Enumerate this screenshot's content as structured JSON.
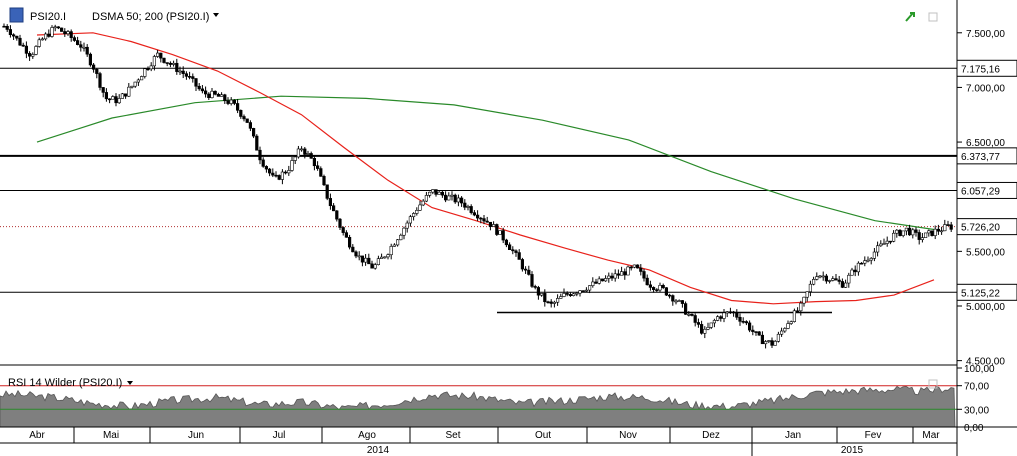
{
  "header": {
    "symbol_label": "PSI20.I",
    "indicator_label": "DSMA 50; 200 (PSI20.I)",
    "rsi_label": "RSI 14 Wilder (PSI20.I)"
  },
  "colors": {
    "sma50": "#e8221b",
    "sma200": "#2a8a2a",
    "candle_up": "#ffffff",
    "candle_down": "#000000",
    "rsi_fill": "#7f7f7f",
    "rsi_upper": "#d02020",
    "rsi_lower": "#2a8a2a",
    "last_price_line": "#b03030"
  },
  "chart_data": [
    {
      "type": "candlestick",
      "title": "PSI20.I",
      "x_tick_labels": [
        "Abr",
        "Mai",
        "Jun",
        "Jul",
        "Ago",
        "Set",
        "Out",
        "Nov",
        "Dez",
        "Jan",
        "Fev",
        "Mar"
      ],
      "year_labels": [
        "2014",
        "2015"
      ],
      "y_tick_labels": [
        "7.500,00",
        "7.000,00",
        "6.500,00",
        "5.500,00",
        "5.000,00",
        "4.500,00"
      ],
      "y_ticks": [
        7500,
        7000,
        6500,
        5500,
        5000,
        4500
      ],
      "ylim": [
        4460,
        7800
      ],
      "horizontal_levels": [
        {
          "value": 7175.16,
          "label": "7.175,16"
        },
        {
          "value": 6373.77,
          "label": "6.373,77"
        },
        {
          "value": 6057.29,
          "label": "6.057,29"
        },
        {
          "value": 5726.2,
          "label": "5.726,20"
        },
        {
          "value": 5125.22,
          "label": "5.125,22"
        }
      ],
      "support_segment_value": 4940,
      "close_path": [
        [
          "Abr",
          7560
        ],
        [
          "Abr",
          7420
        ],
        [
          "Abr",
          7300
        ],
        [
          "Abr",
          7450
        ],
        [
          "Abr",
          7550
        ],
        [
          "Abr",
          7480
        ],
        [
          "Mai",
          7390
        ],
        [
          "Mai",
          7200
        ],
        [
          "Mai",
          6900
        ],
        [
          "Mai",
          6880
        ],
        [
          "Mai",
          7000
        ],
        [
          "Mai",
          7150
        ],
        [
          "Jun",
          7300
        ],
        [
          "Jun",
          7200
        ],
        [
          "Jun",
          7100
        ],
        [
          "Jun",
          6950
        ],
        [
          "Jun",
          6920
        ],
        [
          "Jun",
          6850
        ],
        [
          "Jul",
          6700
        ],
        [
          "Jul",
          6350
        ],
        [
          "Jul",
          6150
        ],
        [
          "Jul",
          6250
        ],
        [
          "Jul",
          6450
        ],
        [
          "Jul",
          6300
        ],
        [
          "Ago",
          5950
        ],
        [
          "Ago",
          5650
        ],
        [
          "Ago",
          5450
        ],
        [
          "Ago",
          5350
        ],
        [
          "Ago",
          5500
        ],
        [
          "Ago",
          5700
        ],
        [
          "Set",
          5900
        ],
        [
          "Set",
          6050
        ],
        [
          "Set",
          6000
        ],
        [
          "Set",
          5950
        ],
        [
          "Set",
          5850
        ],
        [
          "Set",
          5750
        ],
        [
          "Out",
          5600
        ],
        [
          "Out",
          5400
        ],
        [
          "Out",
          5150
        ],
        [
          "Out",
          5000
        ],
        [
          "Out",
          5100
        ],
        [
          "Out",
          5150
        ],
        [
          "Nov",
          5200
        ],
        [
          "Nov",
          5250
        ],
        [
          "Nov",
          5300
        ],
        [
          "Nov",
          5350
        ],
        [
          "Nov",
          5200
        ],
        [
          "Nov",
          5150
        ],
        [
          "Dez",
          5050
        ],
        [
          "Dez",
          4900
        ],
        [
          "Dez",
          4750
        ],
        [
          "Dez",
          4900
        ],
        [
          "Dez",
          4950
        ],
        [
          "Dez",
          4850
        ],
        [
          "Jan",
          4700
        ],
        [
          "Jan",
          4650
        ],
        [
          "Jan",
          4850
        ],
        [
          "Jan",
          5000
        ],
        [
          "Jan",
          5300
        ],
        [
          "Jan",
          5250
        ],
        [
          "Fev",
          5200
        ],
        [
          "Fev",
          5350
        ],
        [
          "Fev",
          5450
        ],
        [
          "Fev",
          5550
        ],
        [
          "Fev",
          5650
        ],
        [
          "Fev",
          5700
        ],
        [
          "Mar",
          5620
        ],
        [
          "Mar",
          5680
        ],
        [
          "Mar",
          5726
        ]
      ],
      "sma50_path": [
        [
          "Abr",
          7480
        ],
        [
          "Mai",
          7500
        ],
        [
          "Mai",
          7420
        ],
        [
          "Jun",
          7300
        ],
        [
          "Jun",
          7150
        ],
        [
          "Jul",
          6950
        ],
        [
          "Jul",
          6750
        ],
        [
          "Ago",
          6450
        ],
        [
          "Ago",
          6150
        ],
        [
          "Set",
          5900
        ],
        [
          "Set",
          5780
        ],
        [
          "Out",
          5650
        ],
        [
          "Out",
          5530
        ],
        [
          "Nov",
          5420
        ],
        [
          "Nov",
          5330
        ],
        [
          "Dez",
          5170
        ],
        [
          "Dez",
          5050
        ],
        [
          "Jan",
          5020
        ],
        [
          "Jan",
          5040
        ],
        [
          "Fev",
          5050
        ],
        [
          "Fev",
          5100
        ],
        [
          "Mar",
          5240
        ]
      ],
      "sma200_path": [
        [
          "Abr",
          6500
        ],
        [
          "Mai",
          6720
        ],
        [
          "Jun",
          6860
        ],
        [
          "Jul",
          6920
        ],
        [
          "Ago",
          6900
        ],
        [
          "Set",
          6840
        ],
        [
          "Out",
          6700
        ],
        [
          "Nov",
          6520
        ],
        [
          "Dez",
          6230
        ],
        [
          "Jan",
          5980
        ],
        [
          "Fev",
          5780
        ],
        [
          "Mar",
          5700
        ]
      ]
    },
    {
      "type": "area",
      "title": "RSI 14 Wilder (PSI20.I)",
      "y_tick_labels": [
        "100,00",
        "70,00",
        "30,00",
        "0,00"
      ],
      "y_ticks": [
        100,
        70,
        30,
        0
      ],
      "ylim": [
        0,
        100
      ],
      "upper_band": 70,
      "lower_band": 30,
      "values_by_month": [
        [
          "Abr",
          55
        ],
        [
          "Abr",
          50
        ],
        [
          "Mai",
          40
        ],
        [
          "Mai",
          35
        ],
        [
          "Jun",
          45
        ],
        [
          "Jun",
          50
        ],
        [
          "Jul",
          38
        ],
        [
          "Jul",
          42
        ],
        [
          "Ago",
          32
        ],
        [
          "Ago",
          40
        ],
        [
          "Set",
          55
        ],
        [
          "Set",
          52
        ],
        [
          "Out",
          40
        ],
        [
          "Out",
          45
        ],
        [
          "Nov",
          52
        ],
        [
          "Nov",
          50
        ],
        [
          "Dez",
          38
        ],
        [
          "Dez",
          35
        ],
        [
          "Jan",
          45
        ],
        [
          "Jan",
          58
        ],
        [
          "Fev",
          62
        ],
        [
          "Fev",
          64
        ],
        [
          "Mar",
          60
        ],
        [
          "Mar",
          66
        ]
      ]
    }
  ]
}
